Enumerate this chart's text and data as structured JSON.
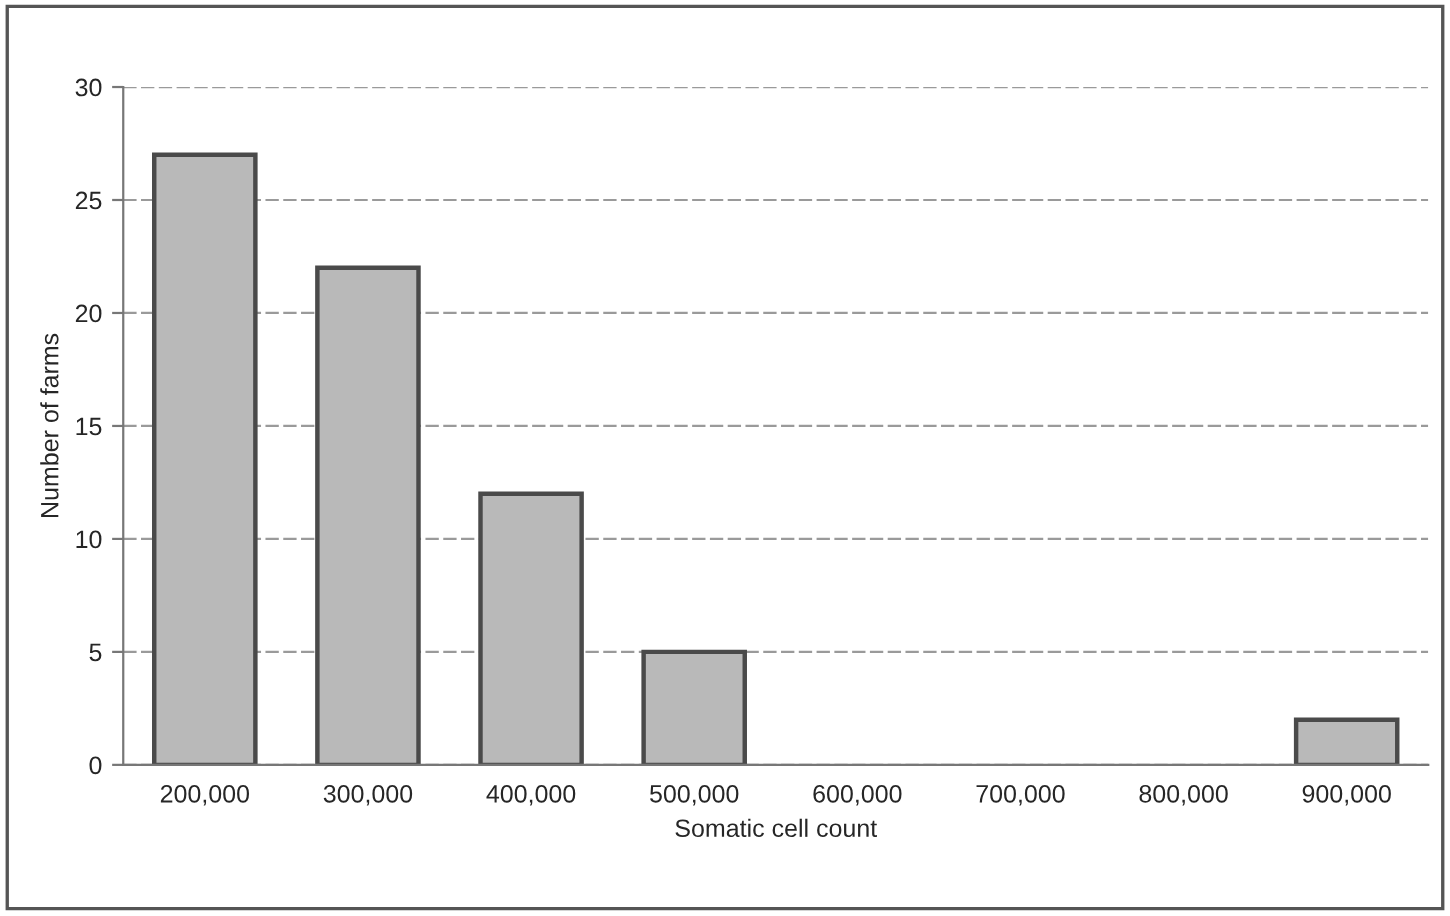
{
  "chart_data": {
    "type": "bar",
    "xlabel": "Somatic cell count",
    "ylabel": "Number of farms",
    "categories": [
      "200,000",
      "300,000",
      "400,000",
      "500,000",
      "600,000",
      "700,000",
      "800,000",
      "900,000"
    ],
    "values": [
      27,
      22,
      12,
      5,
      0,
      0,
      0,
      2
    ],
    "color": "#b9b9b9",
    "ylim": [
      0,
      30
    ],
    "yticks": [
      0,
      5,
      10,
      15,
      20,
      25,
      30
    ],
    "grid": "y",
    "legend": false
  }
}
